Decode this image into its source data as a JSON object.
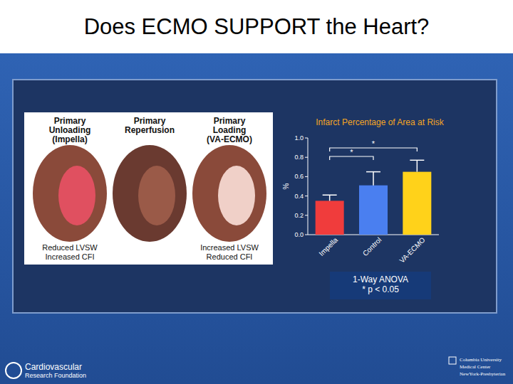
{
  "slide": {
    "title": "Does ECMO SUPPORT the Heart?",
    "photo_labels": [
      {
        "top": [
          "Primary",
          "Unloading",
          "(Impella)"
        ],
        "bottom": [
          "Reduced LVSW",
          "Increased CFI"
        ]
      },
      {
        "top": [
          "Primary",
          "Reperfusion"
        ]
      },
      {
        "top": [
          "Primary",
          "Loading",
          "(VA-ECMO)"
        ],
        "bottom": [
          "Increased LVSW",
          "Reduced CFI"
        ]
      }
    ],
    "stats_box": [
      "1-Way ANOVA",
      "* p < 0.05"
    ],
    "footer_left": [
      "Cardiovascular",
      "Research Foundation"
    ],
    "footer_right": [
      "Columbia University",
      "Medical Center",
      "NewYork-Presbyterian"
    ]
  },
  "chart_data": {
    "type": "bar",
    "title": "Infarct Percentage of Area at Risk",
    "y_label": "%",
    "categories": [
      "Impella",
      "Control",
      "VA-ECMO"
    ],
    "values": [
      0.35,
      0.51,
      0.65
    ],
    "errors": [
      0.06,
      0.14,
      0.12
    ],
    "colors": [
      "#f03c3c",
      "#4a7ff0",
      "#ffd21a"
    ],
    "ylim": [
      0,
      1
    ],
    "yticks": [
      {
        "value": 0,
        "label": "0.0"
      },
      {
        "value": 0.2,
        "label": "0.2"
      },
      {
        "value": 0.4,
        "label": "0.4"
      },
      {
        "value": 0.6,
        "label": "0.6"
      },
      {
        "value": 0.8,
        "label": "0.8"
      },
      {
        "value": 1,
        "label": "1.0"
      }
    ],
    "annotations": [
      {
        "text": "*",
        "between": [
          "Impella",
          "Control"
        ]
      },
      {
        "text": "*",
        "between": [
          "Impella",
          "VA-ECMO"
        ]
      }
    ]
  }
}
